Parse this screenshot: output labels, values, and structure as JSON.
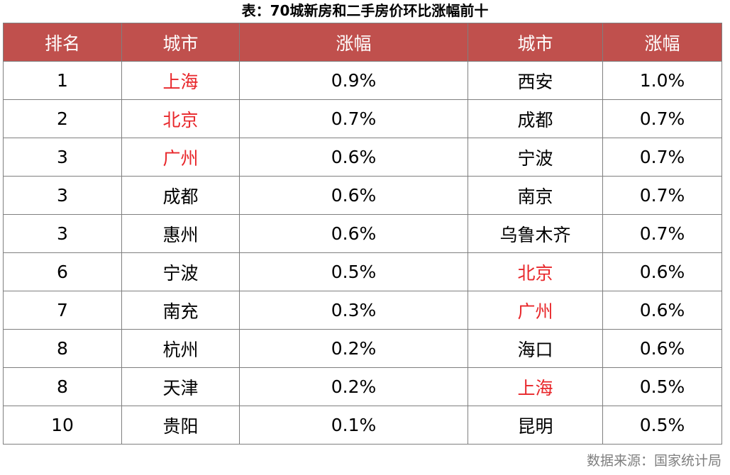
{
  "title": "表：70城新房和二手房价环比涨幅前十",
  "headers": [
    "排名",
    "城市",
    "涨幅",
    "城市",
    "涨幅"
  ],
  "highlight_color": "#e8262a",
  "header_bg": "#c0504d",
  "rows": [
    {
      "rank": "1",
      "city_new": "上海",
      "new_red": true,
      "change_new": "0.9%",
      "city_second": "西安",
      "second_red": false,
      "change_second": "1.0%"
    },
    {
      "rank": "2",
      "city_new": "北京",
      "new_red": true,
      "change_new": "0.7%",
      "city_second": "成都",
      "second_red": false,
      "change_second": "0.7%"
    },
    {
      "rank": "3",
      "city_new": "广州",
      "new_red": true,
      "change_new": "0.6%",
      "city_second": "宁波",
      "second_red": false,
      "change_second": "0.7%"
    },
    {
      "rank": "3",
      "city_new": "成都",
      "new_red": false,
      "change_new": "0.6%",
      "city_second": "南京",
      "second_red": false,
      "change_second": "0.7%"
    },
    {
      "rank": "3",
      "city_new": "惠州",
      "new_red": false,
      "change_new": "0.6%",
      "city_second": "乌鲁木齐",
      "second_red": false,
      "change_second": "0.7%"
    },
    {
      "rank": "6",
      "city_new": "宁波",
      "new_red": false,
      "change_new": "0.5%",
      "city_second": "北京",
      "second_red": true,
      "change_second": "0.6%"
    },
    {
      "rank": "7",
      "city_new": "南充",
      "new_red": false,
      "change_new": "0.3%",
      "city_second": "广州",
      "second_red": true,
      "change_second": "0.6%"
    },
    {
      "rank": "8",
      "city_new": "杭州",
      "new_red": false,
      "change_new": "0.2%",
      "city_second": "海口",
      "second_red": false,
      "change_second": "0.6%"
    },
    {
      "rank": "8",
      "city_new": "天津",
      "new_red": false,
      "change_new": "0.2%",
      "city_second": "上海",
      "second_red": true,
      "change_second": "0.5%"
    },
    {
      "rank": "10",
      "city_new": "贵阳",
      "new_red": false,
      "change_new": "0.1%",
      "city_second": "昆明",
      "second_red": false,
      "change_second": "0.5%"
    }
  ],
  "source": "数据来源：国家统计局"
}
